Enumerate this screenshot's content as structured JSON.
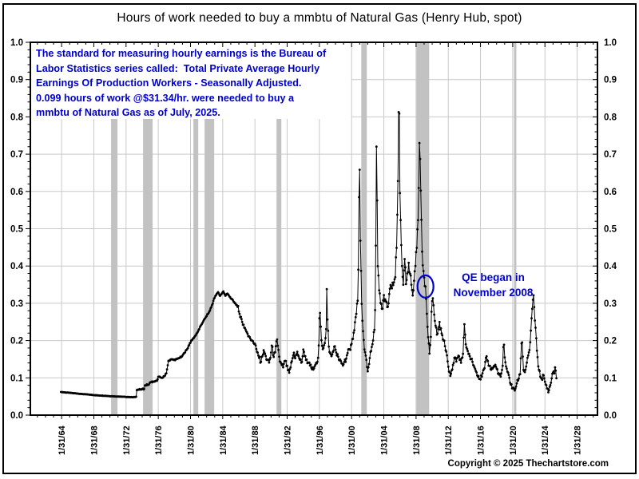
{
  "colors": {
    "line": "#000000",
    "marker": "#000000",
    "grid": "#c9c9c9",
    "recession_band": "#c2c2c2",
    "annotation_blue": "#0000cc",
    "plot_border": "#000000",
    "background": "#ffffff"
  },
  "annotation": {
    "lines": [
      "The standard for measuring hourly earnings is the Bureau of",
      "Labor Statistics series called:  Total Private Average Hourly",
      "Earnings Of Production Workers - Seasonally Adjusted.",
      "0.099 hours of work @$31.34/hr. were needed to buy a",
      "mmbtu of Natural Gas as of July, 2025."
    ],
    "latest_value_hours": 0.099,
    "latest_wage_per_hour_usd": 31.34,
    "latest_date": "July, 2025"
  },
  "qe": {
    "line1": "QE began in",
    "line2": "November 2008",
    "circle_year": 2009.25,
    "circle_value": 0.345
  },
  "footer": {
    "copyright": "Copyright © 2025 Thechartstore.com"
  },
  "chart_data": {
    "type": "line",
    "title": "Hours of work needed to buy a mmbtu of Natural Gas (Henry Hub, spot)",
    "xlabel": "",
    "ylabel": "",
    "ylim": [
      0.0,
      1.0
    ],
    "y_tick_labels": [
      "0.0",
      "0.1",
      "0.2",
      "0.3",
      "0.4",
      "0.5",
      "0.6",
      "0.7",
      "0.8",
      "0.9",
      "1.0"
    ],
    "y_minor_step": 0.02,
    "x_domain": [
      1960.2,
      2030.6
    ],
    "x_tick_labels": [
      "1/31/64",
      "1/31/68",
      "1/31/72",
      "1/31/76",
      "1/31/80",
      "1/31/84",
      "1/31/88",
      "1/31/92",
      "1/31/96",
      "1/31/00",
      "1/31/04",
      "1/31/08",
      "1/31/12",
      "1/31/16",
      "1/31/20",
      "1/31/24",
      "1/31/28"
    ],
    "x_tick_years": [
      1964.08,
      1968.08,
      1972.08,
      1976.08,
      1980.08,
      1984.08,
      1988.08,
      1992.08,
      1996.08,
      2000.08,
      2004.08,
      2008.08,
      2012.08,
      2016.08,
      2020.08,
      2024.08,
      2028.08
    ],
    "grid": true,
    "legend": "none",
    "recessions_years": [
      [
        1970.22,
        1971.02
      ],
      [
        1974.19,
        1975.38
      ],
      [
        1980.44,
        1981.04
      ],
      [
        1981.83,
        1983.02
      ],
      [
        1990.76,
        1991.36
      ],
      [
        2001.28,
        2001.97
      ],
      [
        2008.13,
        2009.71
      ],
      [
        2020.23,
        2020.53
      ]
    ],
    "series": [
      {
        "name": "Hours of work needed to buy a mmbtu of Natural Gas (Henry Hub, spot)",
        "frequency": "monthly",
        "anchors": [
          [
            1964.0,
            0.062
          ],
          [
            1964.5,
            0.061
          ],
          [
            1965.0,
            0.06
          ],
          [
            1965.5,
            0.059
          ],
          [
            1966.0,
            0.058
          ],
          [
            1966.5,
            0.057
          ],
          [
            1967.0,
            0.056
          ],
          [
            1967.5,
            0.055
          ],
          [
            1968.0,
            0.054
          ],
          [
            1968.5,
            0.053
          ],
          [
            1969.0,
            0.0525
          ],
          [
            1969.5,
            0.052
          ],
          [
            1970.0,
            0.051
          ],
          [
            1970.5,
            0.0505
          ],
          [
            1971.0,
            0.05
          ],
          [
            1971.5,
            0.0495
          ],
          [
            1972.0,
            0.049
          ],
          [
            1972.5,
            0.0485
          ],
          [
            1972.92,
            0.048
          ],
          [
            1973.17,
            0.0485
          ],
          [
            1973.33,
            0.049
          ],
          [
            1973.42,
            0.068
          ],
          [
            1973.92,
            0.069
          ],
          [
            1974.33,
            0.07
          ],
          [
            1974.42,
            0.08
          ],
          [
            1974.92,
            0.082
          ],
          [
            1975.08,
            0.088
          ],
          [
            1975.5,
            0.09
          ],
          [
            1975.92,
            0.092
          ],
          [
            1976.08,
            0.103
          ],
          [
            1976.5,
            0.1
          ],
          [
            1976.92,
            0.106
          ],
          [
            1977.08,
            0.112
          ],
          [
            1977.33,
            0.145
          ],
          [
            1977.67,
            0.15
          ],
          [
            1978.0,
            0.148
          ],
          [
            1978.33,
            0.15
          ],
          [
            1978.67,
            0.153
          ],
          [
            1979.0,
            0.157
          ],
          [
            1979.33,
            0.167
          ],
          [
            1979.67,
            0.177
          ],
          [
            1980.0,
            0.193
          ],
          [
            1980.33,
            0.203
          ],
          [
            1980.67,
            0.213
          ],
          [
            1981.0,
            0.224
          ],
          [
            1981.33,
            0.239
          ],
          [
            1981.67,
            0.252
          ],
          [
            1982.0,
            0.264
          ],
          [
            1982.33,
            0.274
          ],
          [
            1982.67,
            0.29
          ],
          [
            1983.0,
            0.312
          ],
          [
            1983.25,
            0.322
          ],
          [
            1983.5,
            0.33
          ],
          [
            1983.75,
            0.32
          ],
          [
            1984.0,
            0.327
          ],
          [
            1984.17,
            0.332
          ],
          [
            1984.42,
            0.32
          ],
          [
            1984.67,
            0.326
          ],
          [
            1984.92,
            0.318
          ],
          [
            1985.17,
            0.312
          ],
          [
            1985.5,
            0.303
          ],
          [
            1985.83,
            0.295
          ],
          [
            1986.17,
            0.272
          ],
          [
            1986.5,
            0.25
          ],
          [
            1986.83,
            0.234
          ],
          [
            1987.08,
            0.222
          ],
          [
            1987.42,
            0.21
          ],
          [
            1987.75,
            0.2
          ],
          [
            1988.08,
            0.192
          ],
          [
            1988.33,
            0.17
          ],
          [
            1988.58,
            0.154
          ],
          [
            1988.83,
            0.143
          ],
          [
            1989.0,
            0.158
          ],
          [
            1989.17,
            0.174
          ],
          [
            1989.42,
            0.158
          ],
          [
            1989.58,
            0.148
          ],
          [
            1989.83,
            0.141
          ],
          [
            1990.0,
            0.154
          ],
          [
            1990.17,
            0.187
          ],
          [
            1990.42,
            0.156
          ],
          [
            1990.58,
            0.168
          ],
          [
            1990.83,
            0.203
          ],
          [
            1991.0,
            0.175
          ],
          [
            1991.17,
            0.143
          ],
          [
            1991.42,
            0.134
          ],
          [
            1991.58,
            0.128
          ],
          [
            1991.83,
            0.146
          ],
          [
            1992.0,
            0.132
          ],
          [
            1992.17,
            0.12
          ],
          [
            1992.33,
            0.113
          ],
          [
            1992.5,
            0.128
          ],
          [
            1992.67,
            0.145
          ],
          [
            1992.92,
            0.168
          ],
          [
            1993.08,
            0.152
          ],
          [
            1993.33,
            0.17
          ],
          [
            1993.5,
            0.158
          ],
          [
            1993.67,
            0.148
          ],
          [
            1993.92,
            0.143
          ],
          [
            1994.08,
            0.176
          ],
          [
            1994.33,
            0.158
          ],
          [
            1994.5,
            0.149
          ],
          [
            1994.67,
            0.14
          ],
          [
            1994.92,
            0.133
          ],
          [
            1995.08,
            0.127
          ],
          [
            1995.33,
            0.122
          ],
          [
            1995.5,
            0.131
          ],
          [
            1995.67,
            0.14
          ],
          [
            1995.92,
            0.154
          ],
          [
            1996.04,
            0.212
          ],
          [
            1996.13,
            0.298
          ],
          [
            1996.29,
            0.208
          ],
          [
            1996.46,
            0.173
          ],
          [
            1996.63,
            0.188
          ],
          [
            1996.79,
            0.2
          ],
          [
            1996.92,
            0.232
          ],
          [
            1997.0,
            0.338
          ],
          [
            1997.08,
            0.258
          ],
          [
            1997.25,
            0.184
          ],
          [
            1997.42,
            0.166
          ],
          [
            1997.58,
            0.158
          ],
          [
            1997.83,
            0.173
          ],
          [
            1998.0,
            0.185
          ],
          [
            1998.17,
            0.168
          ],
          [
            1998.42,
            0.156
          ],
          [
            1998.58,
            0.147
          ],
          [
            1998.83,
            0.139
          ],
          [
            1999.0,
            0.133
          ],
          [
            1999.17,
            0.143
          ],
          [
            1999.42,
            0.152
          ],
          [
            1999.58,
            0.166
          ],
          [
            1999.83,
            0.176
          ],
          [
            2000.0,
            0.188
          ],
          [
            2000.17,
            0.204
          ],
          [
            2000.42,
            0.228
          ],
          [
            2000.58,
            0.262
          ],
          [
            2000.83,
            0.305
          ],
          [
            2000.96,
            0.42
          ],
          [
            2001.04,
            0.73
          ],
          [
            2001.17,
            0.46
          ],
          [
            2001.33,
            0.3
          ],
          [
            2001.5,
            0.225
          ],
          [
            2001.67,
            0.175
          ],
          [
            2001.92,
            0.148
          ],
          [
            2002.08,
            0.117
          ],
          [
            2002.33,
            0.153
          ],
          [
            2002.5,
            0.172
          ],
          [
            2002.67,
            0.19
          ],
          [
            2002.92,
            0.23
          ],
          [
            2003.04,
            0.31
          ],
          [
            2003.17,
            0.73
          ],
          [
            2003.33,
            0.4
          ],
          [
            2003.5,
            0.335
          ],
          [
            2003.67,
            0.3
          ],
          [
            2003.92,
            0.285
          ],
          [
            2004.08,
            0.322
          ],
          [
            2004.33,
            0.305
          ],
          [
            2004.5,
            0.29
          ],
          [
            2004.67,
            0.3
          ],
          [
            2004.92,
            0.35
          ],
          [
            2005.08,
            0.34
          ],
          [
            2005.33,
            0.355
          ],
          [
            2005.5,
            0.37
          ],
          [
            2005.67,
            0.45
          ],
          [
            2005.83,
            0.62
          ],
          [
            2005.96,
            0.928
          ],
          [
            2006.08,
            0.6
          ],
          [
            2006.21,
            0.47
          ],
          [
            2006.33,
            0.4
          ],
          [
            2006.5,
            0.35
          ],
          [
            2006.67,
            0.42
          ],
          [
            2006.83,
            0.35
          ],
          [
            2007.0,
            0.38
          ],
          [
            2007.17,
            0.41
          ],
          [
            2007.33,
            0.38
          ],
          [
            2007.5,
            0.35
          ],
          [
            2007.67,
            0.32
          ],
          [
            2007.83,
            0.36
          ],
          [
            2008.0,
            0.4
          ],
          [
            2008.17,
            0.45
          ],
          [
            2008.33,
            0.52
          ],
          [
            2008.5,
            0.73
          ],
          [
            2008.67,
            0.6
          ],
          [
            2008.83,
            0.44
          ],
          [
            2008.96,
            0.4
          ],
          [
            2009.08,
            0.37
          ],
          [
            2009.25,
            0.345
          ],
          [
            2009.42,
            0.27
          ],
          [
            2009.58,
            0.21
          ],
          [
            2009.75,
            0.165
          ],
          [
            2009.92,
            0.21
          ],
          [
            2010.04,
            0.3
          ],
          [
            2010.17,
            0.315
          ],
          [
            2010.33,
            0.27
          ],
          [
            2010.5,
            0.24
          ],
          [
            2010.67,
            0.215
          ],
          [
            2010.83,
            0.23
          ],
          [
            2010.96,
            0.25
          ],
          [
            2011.08,
            0.23
          ],
          [
            2011.33,
            0.215
          ],
          [
            2011.5,
            0.2
          ],
          [
            2011.67,
            0.185
          ],
          [
            2011.92,
            0.16
          ],
          [
            2012.08,
            0.13
          ],
          [
            2012.33,
            0.105
          ],
          [
            2012.5,
            0.12
          ],
          [
            2012.67,
            0.135
          ],
          [
            2012.92,
            0.155
          ],
          [
            2013.08,
            0.143
          ],
          [
            2013.33,
            0.16
          ],
          [
            2013.5,
            0.148
          ],
          [
            2013.67,
            0.14
          ],
          [
            2013.92,
            0.165
          ],
          [
            2014.08,
            0.245
          ],
          [
            2014.25,
            0.19
          ],
          [
            2014.5,
            0.172
          ],
          [
            2014.75,
            0.158
          ],
          [
            2014.92,
            0.15
          ],
          [
            2015.08,
            0.143
          ],
          [
            2015.33,
            0.128
          ],
          [
            2015.58,
            0.115
          ],
          [
            2015.83,
            0.105
          ],
          [
            2016.08,
            0.096
          ],
          [
            2016.33,
            0.112
          ],
          [
            2016.58,
            0.125
          ],
          [
            2016.83,
            0.158
          ],
          [
            2017.0,
            0.145
          ],
          [
            2017.17,
            0.132
          ],
          [
            2017.42,
            0.122
          ],
          [
            2017.67,
            0.128
          ],
          [
            2017.92,
            0.135
          ],
          [
            2018.08,
            0.125
          ],
          [
            2018.33,
            0.112
          ],
          [
            2018.58,
            0.103
          ],
          [
            2018.83,
            0.13
          ],
          [
            2018.96,
            0.2
          ],
          [
            2019.08,
            0.155
          ],
          [
            2019.33,
            0.125
          ],
          [
            2019.58,
            0.108
          ],
          [
            2019.83,
            0.082
          ],
          [
            2020.08,
            0.072
          ],
          [
            2020.33,
            0.066
          ],
          [
            2020.58,
            0.085
          ],
          [
            2020.83,
            0.098
          ],
          [
            2021.0,
            0.11
          ],
          [
            2021.21,
            0.215
          ],
          [
            2021.42,
            0.12
          ],
          [
            2021.58,
            0.115
          ],
          [
            2021.83,
            0.14
          ],
          [
            2022.0,
            0.16
          ],
          [
            2022.17,
            0.175
          ],
          [
            2022.33,
            0.225
          ],
          [
            2022.5,
            0.285
          ],
          [
            2022.63,
            0.33
          ],
          [
            2022.75,
            0.29
          ],
          [
            2022.88,
            0.245
          ],
          [
            2023.04,
            0.185
          ],
          [
            2023.21,
            0.14
          ],
          [
            2023.38,
            0.118
          ],
          [
            2023.54,
            0.102
          ],
          [
            2023.71,
            0.096
          ],
          [
            2023.88,
            0.108
          ],
          [
            2024.04,
            0.092
          ],
          [
            2024.21,
            0.08
          ],
          [
            2024.38,
            0.072
          ],
          [
            2024.54,
            0.062
          ],
          [
            2024.71,
            0.078
          ],
          [
            2024.88,
            0.092
          ],
          [
            2025.04,
            0.118
          ],
          [
            2025.21,
            0.112
          ],
          [
            2025.38,
            0.128
          ],
          [
            2025.5,
            0.099
          ]
        ]
      }
    ]
  }
}
